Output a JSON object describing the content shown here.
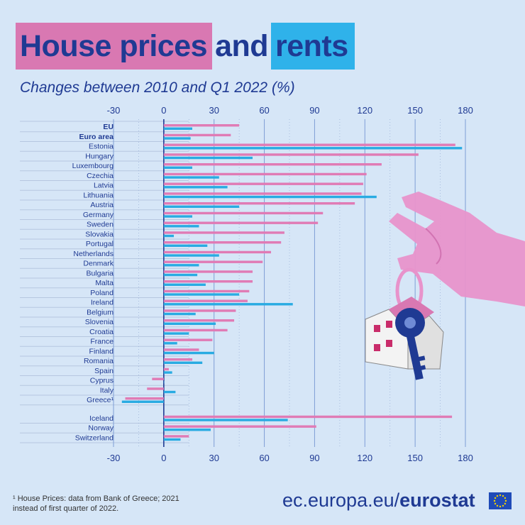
{
  "header": {
    "title_part1": "House prices",
    "title_part2": "and",
    "title_part3": "rents",
    "subtitle": "Changes between 2010 and Q1 2022 (%)"
  },
  "colors": {
    "house": "#e07bb5",
    "rent": "#29abe2",
    "title_text": "#1f3a93",
    "background": "#d6e6f7"
  },
  "chart_data": {
    "type": "bar",
    "orientation": "horizontal",
    "title": "Changes between 2010 and Q1 2022 (%)",
    "xlim": [
      -30,
      180
    ],
    "xticks": [
      -30,
      0,
      30,
      60,
      90,
      120,
      150,
      180
    ],
    "categories": [
      "EU",
      "Euro area",
      "Estonia",
      "Hungary",
      "Luxembourg",
      "Czechia",
      "Latvia",
      "Lithuania",
      "Austria",
      "Germany",
      "Sweden",
      "Slovakia",
      "Portugal",
      "Netherlands",
      "Denmark",
      "Bulgaria",
      "Malta",
      "Poland",
      "Ireland",
      "Belgium",
      "Slovenia",
      "Croatia",
      "France",
      "Finland",
      "Romania",
      "Spain",
      "Cyprus",
      "Italy",
      "Greece¹",
      "Iceland",
      "Norway",
      "Switzerland"
    ],
    "bold_categories": [
      "EU",
      "Euro area"
    ],
    "group_break_before": "Iceland",
    "series": [
      {
        "name": "House prices",
        "values": [
          45,
          40,
          174,
          152,
          130,
          121,
          119,
          118,
          114,
          95,
          92,
          72,
          70,
          64,
          59,
          53,
          53,
          51,
          50,
          43,
          42,
          38,
          29,
          21,
          17,
          3,
          -7,
          -10,
          -23,
          172,
          91,
          15
        ]
      },
      {
        "name": "Rents",
        "values": [
          17,
          16,
          178,
          53,
          17,
          33,
          38,
          127,
          45,
          17,
          21,
          6,
          26,
          33,
          21,
          20,
          25,
          45,
          77,
          19,
          31,
          15,
          8,
          30,
          23,
          5,
          0,
          7,
          -25,
          74,
          28,
          10
        ]
      }
    ]
  },
  "footnote": {
    "line1": "¹ House Prices: data from Bank of Greece; 2021",
    "line2": "instead of first quarter of 2022."
  },
  "branding": {
    "prefix": "ec.europa.eu/",
    "name": "eurostat"
  }
}
